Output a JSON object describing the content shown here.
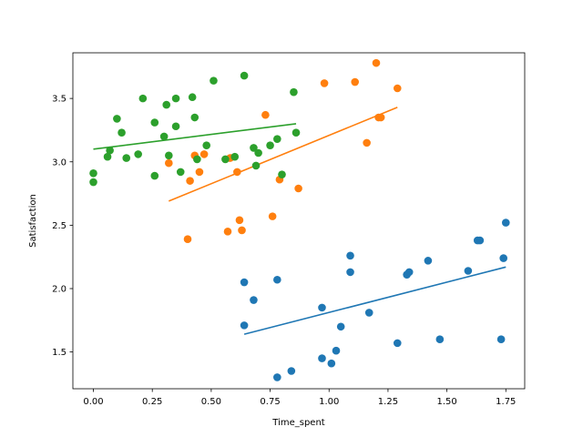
{
  "chart_data": {
    "type": "scatter",
    "title": "",
    "xlabel": "Time_spent",
    "ylabel": "Satisfaction",
    "xlim": [
      -0.087,
      1.83
    ],
    "ylim": [
      1.21,
      3.86
    ],
    "grid": false,
    "x_ticks": [
      0.0,
      0.25,
      0.5,
      0.75,
      1.0,
      1.25,
      1.5,
      1.75
    ],
    "x_tick_labels": [
      "0.00",
      "0.25",
      "0.50",
      "0.75",
      "1.00",
      "1.25",
      "1.50",
      "1.75"
    ],
    "y_ticks": [
      1.5,
      2.0,
      2.5,
      3.0,
      3.5
    ],
    "y_tick_labels": [
      "1.5",
      "2.0",
      "2.5",
      "3.0",
      "3.5"
    ],
    "series": [
      {
        "color": "#1f77b4",
        "points": [
          [
            0.64,
            2.05
          ],
          [
            0.64,
            1.71
          ],
          [
            0.68,
            1.91
          ],
          [
            0.78,
            2.07
          ],
          [
            0.78,
            1.3
          ],
          [
            0.84,
            1.35
          ],
          [
            0.97,
            1.85
          ],
          [
            0.97,
            1.45
          ],
          [
            1.01,
            1.41
          ],
          [
            1.03,
            1.51
          ],
          [
            1.05,
            1.7
          ],
          [
            1.09,
            2.26
          ],
          [
            1.09,
            2.13
          ],
          [
            1.17,
            1.81
          ],
          [
            1.29,
            1.57
          ],
          [
            1.33,
            2.11
          ],
          [
            1.34,
            2.13
          ],
          [
            1.42,
            2.22
          ],
          [
            1.47,
            1.6
          ],
          [
            1.59,
            2.14
          ],
          [
            1.63,
            2.38
          ],
          [
            1.64,
            2.38
          ],
          [
            1.73,
            1.6
          ],
          [
            1.74,
            2.24
          ],
          [
            1.75,
            2.52
          ]
        ],
        "trend": [
          [
            0.64,
            1.64
          ],
          [
            1.75,
            2.17
          ]
        ]
      },
      {
        "color": "#ff7f0e",
        "points": [
          [
            0.32,
            2.99
          ],
          [
            0.4,
            2.39
          ],
          [
            0.41,
            2.85
          ],
          [
            0.43,
            3.05
          ],
          [
            0.45,
            2.92
          ],
          [
            0.47,
            3.06
          ],
          [
            0.57,
            2.45
          ],
          [
            0.58,
            3.03
          ],
          [
            0.62,
            2.54
          ],
          [
            0.63,
            2.46
          ],
          [
            0.61,
            2.92
          ],
          [
            0.73,
            3.37
          ],
          [
            0.76,
            2.57
          ],
          [
            0.79,
            2.86
          ],
          [
            0.87,
            2.79
          ],
          [
            0.98,
            3.62
          ],
          [
            1.11,
            3.63
          ],
          [
            1.16,
            3.15
          ],
          [
            1.2,
            3.78
          ],
          [
            1.21,
            3.35
          ],
          [
            1.22,
            3.35
          ],
          [
            1.29,
            3.58
          ]
        ],
        "trend": [
          [
            0.32,
            2.69
          ],
          [
            1.29,
            3.43
          ]
        ]
      },
      {
        "color": "#2ca02c",
        "points": [
          [
            0.0,
            2.91
          ],
          [
            0.0,
            2.84
          ],
          [
            0.06,
            3.04
          ],
          [
            0.07,
            3.09
          ],
          [
            0.1,
            3.34
          ],
          [
            0.12,
            3.23
          ],
          [
            0.14,
            3.03
          ],
          [
            0.19,
            3.06
          ],
          [
            0.21,
            3.5
          ],
          [
            0.26,
            3.31
          ],
          [
            0.26,
            2.89
          ],
          [
            0.3,
            3.2
          ],
          [
            0.31,
            3.45
          ],
          [
            0.32,
            3.05
          ],
          [
            0.35,
            3.28
          ],
          [
            0.35,
            3.5
          ],
          [
            0.37,
            2.92
          ],
          [
            0.42,
            3.51
          ],
          [
            0.43,
            3.35
          ],
          [
            0.44,
            3.02
          ],
          [
            0.48,
            3.13
          ],
          [
            0.51,
            3.64
          ],
          [
            0.56,
            3.02
          ],
          [
            0.6,
            3.04
          ],
          [
            0.64,
            3.68
          ],
          [
            0.68,
            3.11
          ],
          [
            0.69,
            2.97
          ],
          [
            0.7,
            3.07
          ],
          [
            0.75,
            3.13
          ],
          [
            0.78,
            3.18
          ],
          [
            0.8,
            2.9
          ],
          [
            0.85,
            3.55
          ],
          [
            0.86,
            3.23
          ]
        ],
        "trend": [
          [
            0.0,
            3.1
          ],
          [
            0.86,
            3.3
          ]
        ]
      }
    ]
  }
}
